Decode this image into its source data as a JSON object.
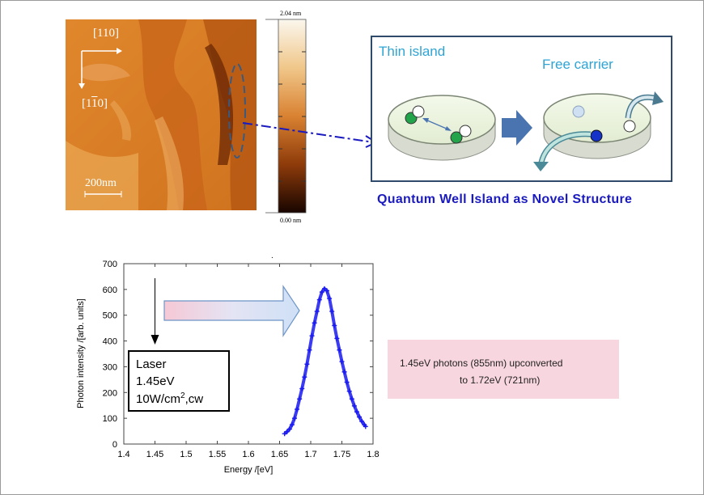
{
  "afm": {
    "direction_1": "[110]",
    "direction_2": "[1‾10]",
    "direction_2_main": "[1",
    "direction_2_bar": "1",
    "direction_2_tail": "0]",
    "scale_label": "200nm",
    "cbar_max": "2.04 nm",
    "cbar_min": "0.00 nm"
  },
  "schematic": {
    "left_label": "Thin island",
    "right_label": "Free carrier",
    "caption": "Quantum  Well Island  as Novel Structure",
    "colors": {
      "frame": "#2f4a6b",
      "label": "#2fa4d4",
      "caption": "#1a1ac0",
      "arrow": "#4a74b0",
      "electron_green": "#23a44a",
      "hole_white": "#ffffff",
      "carrier_blue": "#1533c8"
    }
  },
  "note": {
    "line1": "1.45eV photons (855nm) upconverted",
    "line2": "to 1.72eV (721nm)"
  },
  "chart_data": {
    "type": "scatter",
    "xlabel": "Energy /[eV]",
    "ylabel": "Photon intensity /[arb. units]",
    "xlim": [
      1.4,
      1.8
    ],
    "ylim": [
      0,
      700
    ],
    "xticks": [
      "1.4",
      "1.45",
      "1.5",
      "1.55",
      "1.6",
      "1.65",
      "1.7",
      "1.75",
      "1.8"
    ],
    "yticks": [
      "0",
      "100",
      "200",
      "300",
      "400",
      "500",
      "600",
      "700"
    ],
    "series_color": "#1a1af0",
    "points": [
      [
        1.658,
        40
      ],
      [
        1.662,
        48
      ],
      [
        1.666,
        58
      ],
      [
        1.67,
        75
      ],
      [
        1.674,
        100
      ],
      [
        1.678,
        135
      ],
      [
        1.682,
        175
      ],
      [
        1.686,
        215
      ],
      [
        1.69,
        260
      ],
      [
        1.694,
        310
      ],
      [
        1.698,
        365
      ],
      [
        1.702,
        420
      ],
      [
        1.706,
        470
      ],
      [
        1.71,
        515
      ],
      [
        1.714,
        560
      ],
      [
        1.718,
        590
      ],
      [
        1.722,
        603
      ],
      [
        1.726,
        595
      ],
      [
        1.73,
        565
      ],
      [
        1.734,
        515
      ],
      [
        1.738,
        460
      ],
      [
        1.742,
        410
      ],
      [
        1.746,
        365
      ],
      [
        1.75,
        320
      ],
      [
        1.754,
        280
      ],
      [
        1.758,
        240
      ],
      [
        1.762,
        205
      ],
      [
        1.766,
        175
      ],
      [
        1.77,
        148
      ],
      [
        1.774,
        125
      ],
      [
        1.778,
        105
      ],
      [
        1.782,
        88
      ],
      [
        1.786,
        75
      ],
      [
        1.788,
        68
      ]
    ],
    "annotation": {
      "laser_line1": "Laser",
      "laser_line2": "1.45eV",
      "laser_line3": "10W/cm",
      "laser_sup": "2",
      "laser_tail": ",cw",
      "laser_x": 1.45
    }
  }
}
